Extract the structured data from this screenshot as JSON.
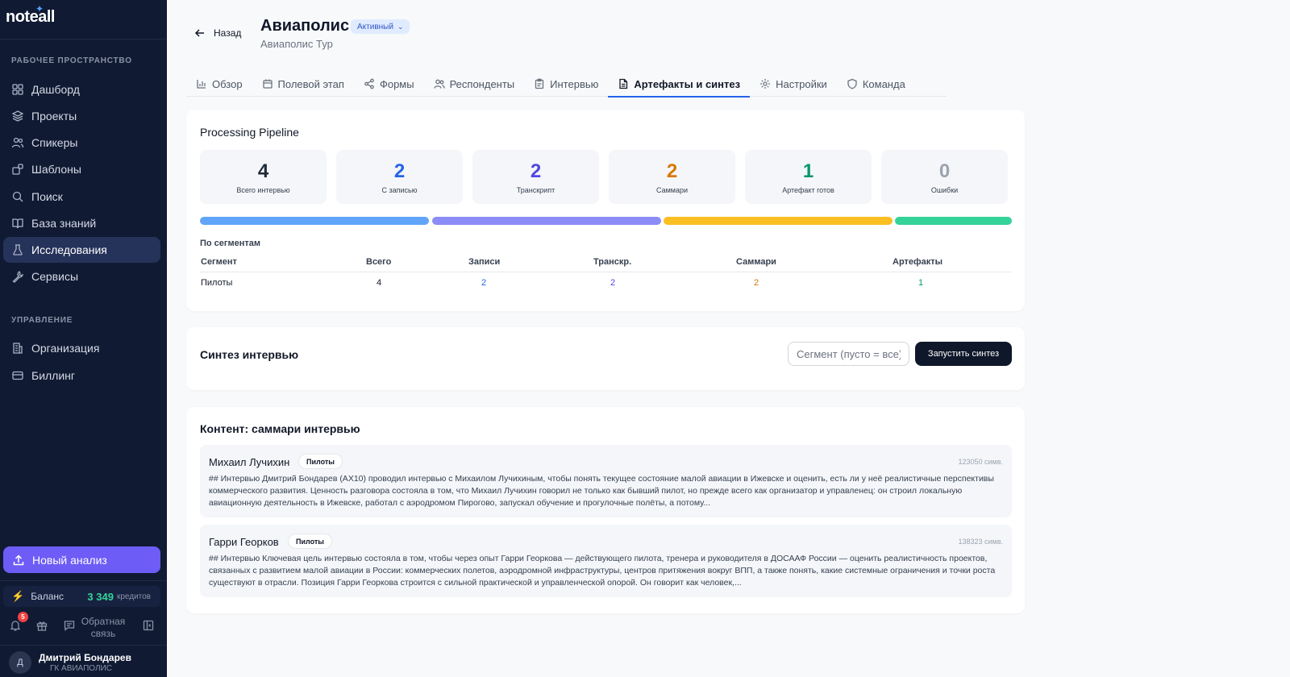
{
  "sidebar": {
    "logo": "noteall",
    "section_workspace": "РАБОЧЕЕ ПРОСТРАНСТВО",
    "section_manage": "УПРАВЛЕНИЕ",
    "items": [
      {
        "label": "Дашборд",
        "icon": "grid-icon"
      },
      {
        "label": "Проекты",
        "icon": "layers-icon"
      },
      {
        "label": "Спикеры",
        "icon": "users-icon"
      },
      {
        "label": "Шаблоны",
        "icon": "template-icon"
      },
      {
        "label": "Поиск",
        "icon": "search-icon"
      },
      {
        "label": "База знаний",
        "icon": "book-icon"
      },
      {
        "label": "Исследования",
        "icon": "flask-icon"
      },
      {
        "label": "Сервисы",
        "icon": "wrench-icon"
      }
    ],
    "manage_items": [
      {
        "label": "Организация",
        "icon": "building-icon"
      },
      {
        "label": "Биллинг",
        "icon": "card-icon"
      }
    ],
    "new_analysis": "Новый анализ",
    "balance_label": "Баланс",
    "balance_amount": "3 349",
    "balance_unit": "кредитов",
    "notifications_count": "5",
    "feedback": "Обратная связь",
    "user_initial": "Д",
    "user_name": "Дмитрий Бондарев",
    "user_org": "ГК АВИАПОЛИС"
  },
  "header": {
    "back": "Назад",
    "title": "Авиаполис",
    "status": "Активный",
    "subtitle": "Авиаполис Тур"
  },
  "tabs": [
    {
      "label": "Обзор",
      "icon": "chart-icon"
    },
    {
      "label": "Полевой этап",
      "icon": "calendar-icon"
    },
    {
      "label": "Формы",
      "icon": "share-icon"
    },
    {
      "label": "Респонденты",
      "icon": "users-icon"
    },
    {
      "label": "Интервью",
      "icon": "clipboard-icon"
    },
    {
      "label": "Артефакты и синтез",
      "icon": "file-icon"
    },
    {
      "label": "Настройки",
      "icon": "gear-icon"
    },
    {
      "label": "Команда",
      "icon": "shield-icon"
    }
  ],
  "pipeline": {
    "title": "Processing Pipeline",
    "stats": [
      {
        "value": "4",
        "label": "Всего интервью",
        "color": "#1f2937"
      },
      {
        "value": "2",
        "label": "С записью",
        "color": "#2563eb"
      },
      {
        "value": "2",
        "label": "Транскрипт",
        "color": "#4f46e5"
      },
      {
        "value": "2",
        "label": "Саммари",
        "color": "#d97706"
      },
      {
        "value": "1",
        "label": "Артефакт готов",
        "color": "#059669"
      },
      {
        "value": "0",
        "label": "Ошибки",
        "color": "#9ca3af"
      }
    ],
    "bar_colors": [
      "#60a5fa",
      "#8b8cf6",
      "#fbbf24",
      "#34d399"
    ],
    "segments_title": "По сегментам",
    "columns": [
      "Сегмент",
      "Всего",
      "Записи",
      "Транскр.",
      "Саммари",
      "Артефакты"
    ],
    "rows": [
      [
        "Пилоты",
        "4",
        "2",
        "2",
        "2",
        "1"
      ]
    ]
  },
  "synthesis": {
    "title": "Синтез интервью",
    "placeholder": "Сегмент (пусто = все)",
    "button": "Запустить синтез"
  },
  "content": {
    "title": "Контент: саммари интервью",
    "items": [
      {
        "name": "Михаил Лучихин",
        "tag": "Пилоты",
        "chars": "123050 симв.",
        "text": "## Интервью Дмитрий Бондарев (AX10) проводил интервью с Михаилом Лучихиным, чтобы понять текущее состояние малой авиации в Ижевске и оценить, есть ли у неё реалистичные перспективы коммерческого развития. Ценность разговора состояла в том, что Михаил Лучихин говорил не только как бывший пилот, но прежде всего как организатор и управленец: он строил локальную авиационную деятельность в Ижевске, работал с аэродромом Пирогово, запускал обучение и прогулочные полёты, а потому..."
      },
      {
        "name": "Гарри Георков",
        "tag": "Пилоты",
        "chars": "138323 симв.",
        "text": "## Интервью Ключевая цель интервью состояла в том, чтобы через опыт Гарри Георкова — действующего пилота, тренера и руководителя в ДОСААФ России — оценить реалистичность проектов, связанных с развитием малой авиации в России: коммерческих полетов, аэродромной инфраструктуры, центров притяжения вокруг ВПП, а также понять, какие системные ограничения и точки роста существуют в отрасли. Позиция Гарри Георкова строится с сильной практической и управленческой опорой. Он говорит как человек,..."
      }
    ]
  }
}
